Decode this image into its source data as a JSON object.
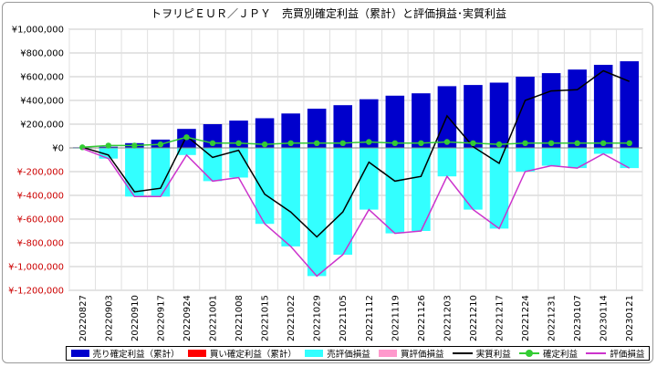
{
  "chart_data": {
    "type": "bar",
    "title": "トヲリピＥＵＲ／ＪＰＹ　売買別確定利益（累計）と評価損益･実質利益",
    "categories": [
      "20220827",
      "20220903",
      "20220910",
      "20220917",
      "20220924",
      "20221001",
      "20221008",
      "20221015",
      "20221022",
      "20221029",
      "20221105",
      "20221112",
      "20221119",
      "20221126",
      "20221203",
      "20221210",
      "20221217",
      "20221224",
      "20221231",
      "20230107",
      "20230114",
      "20230121"
    ],
    "ylim": [
      -1200000,
      1000000
    ],
    "ytick_values": [
      1000000,
      800000,
      600000,
      400000,
      200000,
      0,
      -200000,
      -400000,
      -600000,
      -800000,
      -1000000,
      -1200000
    ],
    "ytick_labels": [
      "¥1,000,000",
      "¥800,000",
      "¥600,000",
      "¥400,000",
      "¥200,000",
      "¥0",
      "¥-200,000",
      "¥-400,000",
      "¥-600,000",
      "¥-800,000",
      "¥-1,000,000",
      "¥-1,200,000"
    ],
    "colors": {
      "sell_confirmed": "#0000cc",
      "buy_confirmed": "#ff0000",
      "sell_unrealized": "#33ffff",
      "buy_unrealized": "#ff99cc",
      "real_profit": "#000000",
      "confirmed_profit": "#33cc33",
      "unrealized": "#cc33cc",
      "negative_tick": "#cc0000"
    },
    "series": [
      {
        "name": "売り確定利益（累計）",
        "kind": "bar",
        "values": [
          5000,
          10000,
          40000,
          70000,
          160000,
          200000,
          230000,
          250000,
          290000,
          330000,
          360000,
          410000,
          440000,
          460000,
          520000,
          530000,
          550000,
          600000,
          630000,
          660000,
          700000,
          730000
        ]
      },
      {
        "name": "買い確定利益（累計）",
        "kind": "bar",
        "values": [
          0,
          0,
          0,
          0,
          0,
          0,
          0,
          0,
          0,
          0,
          0,
          0,
          0,
          0,
          0,
          0,
          0,
          0,
          0,
          0,
          0,
          0
        ]
      },
      {
        "name": "売評価損益",
        "kind": "bar",
        "values": [
          -5000,
          -90000,
          -410000,
          -410000,
          -60000,
          -280000,
          -250000,
          -640000,
          -830000,
          -1080000,
          -900000,
          -520000,
          -720000,
          -700000,
          -240000,
          -520000,
          -680000,
          -200000,
          -150000,
          -170000,
          -50000,
          -170000
        ]
      },
      {
        "name": "買評価損益",
        "kind": "bar",
        "values": [
          0,
          0,
          0,
          0,
          0,
          0,
          0,
          0,
          0,
          0,
          0,
          0,
          0,
          0,
          0,
          0,
          0,
          0,
          0,
          0,
          0,
          0
        ]
      },
      {
        "name": "実質利益",
        "kind": "line",
        "values": [
          5000,
          -60000,
          -370000,
          -340000,
          100000,
          -80000,
          -20000,
          -390000,
          -540000,
          -750000,
          -540000,
          -120000,
          -280000,
          -240000,
          270000,
          10000,
          -130000,
          400000,
          480000,
          490000,
          650000,
          560000
        ]
      },
      {
        "name": "確定利益",
        "kind": "line-marker",
        "values": [
          5000,
          20000,
          20000,
          30000,
          90000,
          40000,
          40000,
          30000,
          40000,
          40000,
          40000,
          50000,
          40000,
          40000,
          50000,
          40000,
          30000,
          40000,
          40000,
          40000,
          40000,
          40000
        ]
      },
      {
        "name": "評価損益",
        "kind": "line",
        "values": [
          -5000,
          -90000,
          -410000,
          -410000,
          -60000,
          -280000,
          -250000,
          -640000,
          -830000,
          -1080000,
          -900000,
          -520000,
          -720000,
          -700000,
          -240000,
          -520000,
          -680000,
          -200000,
          -150000,
          -170000,
          -50000,
          -170000
        ]
      }
    ],
    "legend_position": "bottom",
    "grid": true
  }
}
